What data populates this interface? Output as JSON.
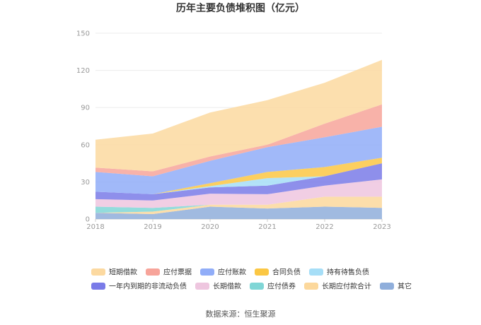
{
  "chart_data": {
    "type": "area",
    "stacked": true,
    "title": "历年主要负债堆积图（亿元）",
    "x": [
      "2018",
      "2019",
      "2020",
      "2021",
      "2022",
      "2023"
    ],
    "y_ticks": [
      "0",
      "30",
      "60",
      "90",
      "120",
      "150"
    ],
    "ylim": [
      0,
      150
    ],
    "grid": true,
    "legend_position": "bottom",
    "series": [
      {
        "name": "短期借款",
        "color": "#fcd9a0",
        "values": [
          22.5,
          30.5,
          35.5,
          36,
          33,
          36
        ]
      },
      {
        "name": "应付票据",
        "color": "#f7a49a",
        "values": [
          3.5,
          4,
          3.5,
          2,
          11,
          18
        ]
      },
      {
        "name": "应付账款",
        "color": "#91adf8",
        "values": [
          16,
          14.5,
          18,
          20,
          24,
          25
        ]
      },
      {
        "name": "合同负债",
        "color": "#fbc744",
        "values": [
          0,
          0,
          2.5,
          5,
          7.5,
          4.5
        ]
      },
      {
        "name": "持有待售负债",
        "color": "#a6def7",
        "values": [
          0,
          0,
          1,
          6,
          0,
          0
        ]
      },
      {
        "name": "一年内到期的非流动负债",
        "color": "#7a7be8",
        "values": [
          6,
          5,
          5,
          7,
          7.5,
          13
        ]
      },
      {
        "name": "长期借款",
        "color": "#eec6df",
        "values": [
          6,
          6,
          9,
          8.5,
          9,
          14
        ]
      },
      {
        "name": "应付债券",
        "color": "#80d6d6",
        "values": [
          5,
          3,
          0,
          0,
          0,
          0
        ]
      },
      {
        "name": "长期应付款合计",
        "color": "#fcd89c",
        "values": [
          0,
          2,
          1.5,
          3,
          8,
          9
        ]
      },
      {
        "name": "其它",
        "color": "#8faedb",
        "values": [
          5,
          4,
          10,
          8.5,
          10,
          9
        ]
      }
    ]
  },
  "footer": {
    "source": "数据来源：恒生聚源"
  }
}
